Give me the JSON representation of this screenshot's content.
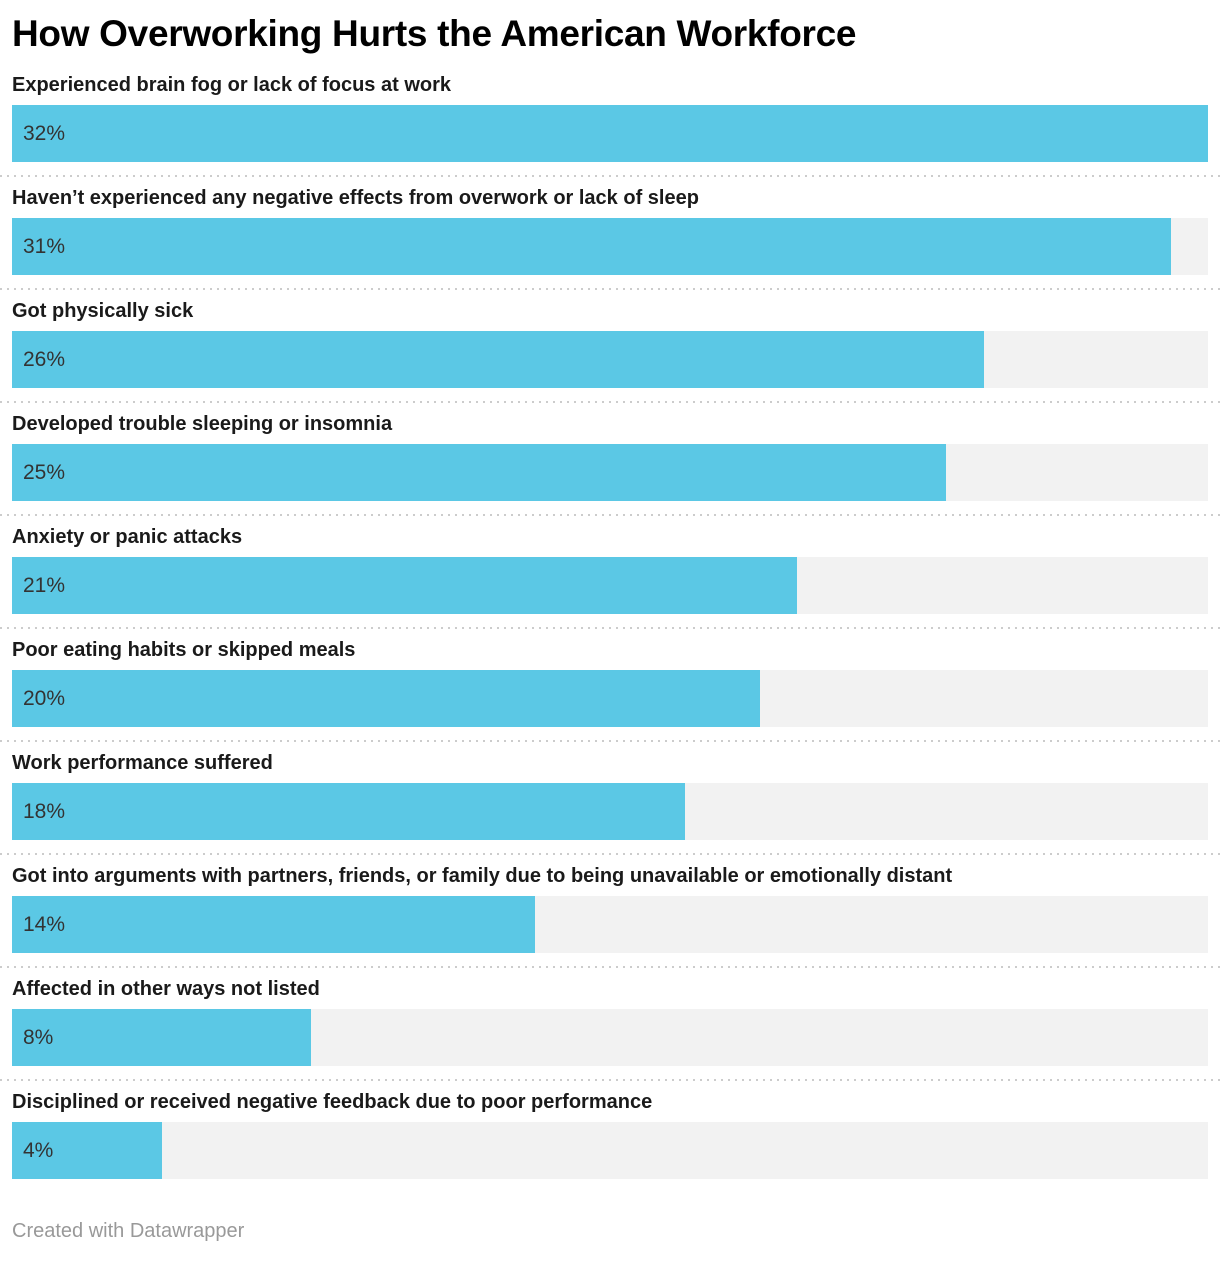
{
  "title": "How Overworking Hurts the American Workforce",
  "footer": {
    "attribution": "Created with Datawrapper"
  },
  "colors": {
    "bar_fill": "#5BC8E5",
    "bar_track": "#F2F2F2",
    "separator": "#CCCCCC",
    "title_text": "#000000",
    "category_text": "#1A1A1A",
    "value_text": "#333333",
    "footer_text": "#999999"
  },
  "chart_data": {
    "type": "bar",
    "orientation": "horizontal",
    "title": "How Overworking Hurts the American Workforce",
    "unit": "%",
    "xlim": [
      0,
      32
    ],
    "grid": false,
    "legend": false,
    "value_labels_position": "inside-start",
    "categories": [
      "Experienced brain fog or lack of focus at work",
      "Haven’t experienced any negative effects from overwork or lack of sleep",
      "Got physically sick",
      "Developed trouble sleeping or insomnia",
      "Anxiety or panic attacks",
      "Poor eating habits or skipped meals",
      "Work performance suffered",
      "Got into arguments with partners, friends, or family due to being unavailable or emotionally distant",
      "Affected in other ways not listed",
      "Disciplined or received negative feedback due to poor performance"
    ],
    "values": [
      32,
      31,
      26,
      25,
      21,
      20,
      18,
      14,
      8,
      4
    ],
    "value_labels": [
      "32%",
      "31%",
      "26%",
      "25%",
      "21%",
      "20%",
      "18%",
      "14%",
      "8%",
      "4%"
    ]
  }
}
